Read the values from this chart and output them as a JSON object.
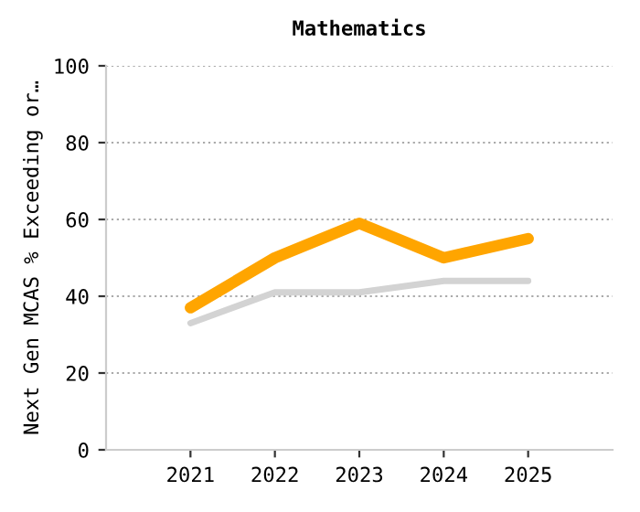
{
  "chart_data": {
    "type": "line",
    "title": "Mathematics",
    "ylabel": "Next Gen MCAS % Exceeding or…",
    "categories": [
      "2021",
      "2022",
      "2023",
      "2024",
      "2025"
    ],
    "series": [
      {
        "color": "#d3d3d3",
        "values": [
          33,
          41,
          41,
          44,
          44
        ]
      },
      {
        "color": "#ffa500",
        "values": [
          37,
          50,
          59,
          50,
          55
        ]
      }
    ],
    "ylim": [
      0,
      100
    ],
    "yticks": [
      0,
      20,
      40,
      60,
      80,
      100
    ],
    "grid": "y",
    "line_style": "solid"
  }
}
